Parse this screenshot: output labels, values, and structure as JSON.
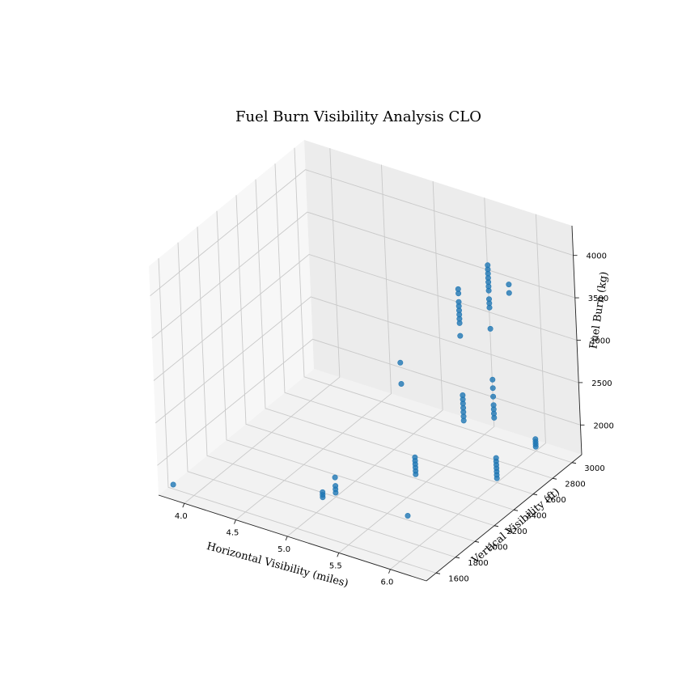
{
  "chart_data": {
    "type": "scatter",
    "title": "Fuel Burn Visibility Analysis CLO",
    "xlabel": "Horizontal Visibility (miles)",
    "ylabel": "Vertical Visibility (ft)",
    "zlabel": "Fuel Burn (kg)",
    "xlim": [
      3.75,
      6.35
    ],
    "ylim": [
      1500,
      3100
    ],
    "zlim": [
      1650,
      4350
    ],
    "xticks": [
      "4.0",
      "4.5",
      "5.0",
      "5.5",
      "6.0"
    ],
    "yticks": [
      "1600",
      "1800",
      "2000",
      "2200",
      "2400",
      "2600",
      "2800",
      "3000"
    ],
    "zticks": [
      "2000",
      "2500",
      "3000",
      "3500",
      "4000"
    ],
    "grid": true,
    "color": "#1f77b4",
    "points": [
      [
        3.8,
        1600,
        1700
      ],
      [
        4.95,
        1920,
        1700
      ],
      [
        4.95,
        1920,
        1730
      ],
      [
        4.95,
        1920,
        1760
      ],
      [
        5.0,
        2000,
        1700
      ],
      [
        5.0,
        2000,
        1740
      ],
      [
        5.0,
        2000,
        1780
      ],
      [
        5.0,
        2000,
        1880
      ],
      [
        5.4,
        2400,
        1700
      ],
      [
        5.4,
        2400,
        1740
      ],
      [
        5.4,
        2400,
        1780
      ],
      [
        5.4,
        2400,
        1820
      ],
      [
        5.4,
        2400,
        1860
      ],
      [
        5.4,
        2400,
        1900
      ],
      [
        5.7,
        2000,
        1700
      ],
      [
        6.0,
        2600,
        1700
      ],
      [
        6.0,
        2600,
        1740
      ],
      [
        6.0,
        2600,
        1780
      ],
      [
        6.0,
        2600,
        1820
      ],
      [
        6.0,
        2600,
        1860
      ],
      [
        6.0,
        2600,
        1900
      ],
      [
        6.0,
        2600,
        1940
      ],
      [
        6.0,
        3000,
        1700
      ],
      [
        6.0,
        3000,
        1730
      ],
      [
        6.0,
        3000,
        1760
      ],
      [
        6.0,
        3000,
        1790
      ],
      [
        4.9,
        2800,
        2200
      ],
      [
        4.9,
        2800,
        2450
      ],
      [
        5.5,
        2800,
        2000
      ],
      [
        5.5,
        2800,
        2050
      ],
      [
        5.5,
        2800,
        2100
      ],
      [
        5.5,
        2800,
        2150
      ],
      [
        5.5,
        2800,
        2200
      ],
      [
        5.5,
        2800,
        2250
      ],
      [
        5.5,
        2800,
        2300
      ],
      [
        5.8,
        2800,
        2150
      ],
      [
        5.8,
        2800,
        2200
      ],
      [
        5.8,
        2800,
        2250
      ],
      [
        5.8,
        2800,
        2300
      ],
      [
        5.8,
        2800,
        2400
      ],
      [
        5.8,
        2800,
        2500
      ],
      [
        5.8,
        2800,
        2600
      ],
      [
        5.5,
        2800,
        3000
      ],
      [
        5.5,
        2800,
        3150
      ],
      [
        5.5,
        2800,
        3200
      ],
      [
        5.5,
        2800,
        3250
      ],
      [
        5.5,
        2800,
        3300
      ],
      [
        5.5,
        2800,
        3350
      ],
      [
        5.5,
        2800,
        3400
      ],
      [
        5.5,
        2800,
        3500
      ],
      [
        5.5,
        2800,
        3550
      ],
      [
        5.8,
        2800,
        3200
      ],
      [
        5.8,
        2800,
        3450
      ],
      [
        5.8,
        2800,
        3500
      ],
      [
        5.8,
        2800,
        3550
      ],
      [
        5.8,
        2800,
        3650
      ],
      [
        5.8,
        2800,
        3700
      ],
      [
        5.8,
        2800,
        3750
      ],
      [
        5.8,
        2800,
        3800
      ],
      [
        5.8,
        2800,
        3850
      ],
      [
        5.8,
        2800,
        3900
      ],
      [
        5.8,
        2800,
        3950
      ],
      [
        6.0,
        2800,
        3700
      ],
      [
        6.0,
        2800,
        3800
      ]
    ]
  }
}
